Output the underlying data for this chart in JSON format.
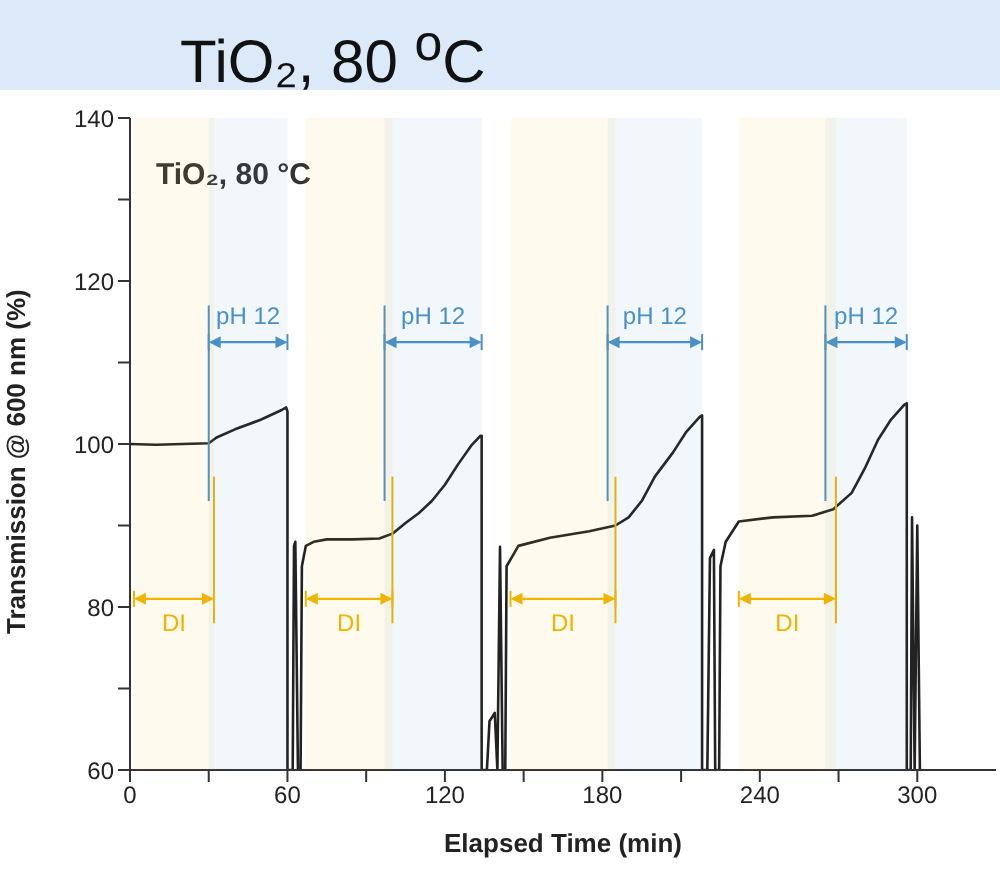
{
  "chart_data": {
    "type": "line",
    "title": "TiO₂, 80 $^{o}$C",
    "subtitle": "TiO₂, 80 °C",
    "xlabel": "Elapsed Time (min)",
    "ylabel": "Transmission @ 600 nm  (%)",
    "series": [
      {
        "color": "#222222",
        "x": [
          0,
          10,
          20,
          30,
          33,
          40,
          50,
          58,
          59.5,
          60,
          60,
          62,
          62.5,
          63,
          64,
          65,
          65.5,
          67,
          70,
          75,
          85,
          95,
          100,
          105,
          110,
          115,
          120,
          125,
          130,
          133.5,
          134,
          134,
          136,
          137,
          139,
          140,
          141,
          142,
          143,
          143.5,
          148,
          160,
          175,
          185,
          190,
          195,
          200,
          207,
          212,
          217,
          218,
          218,
          220,
          221,
          222.5,
          223,
          224.5,
          225,
          227,
          232,
          245,
          260,
          268,
          275,
          280,
          285,
          290,
          295,
          296,
          296,
          297.5,
          298,
          299,
          300,
          301
        ],
        "values": [
          100,
          99.9,
          100,
          100.1,
          100.8,
          101.8,
          103,
          104.2,
          104.5,
          104,
          60,
          60,
          87.5,
          88,
          60,
          60,
          85,
          87.5,
          88,
          88.3,
          88.3,
          88.4,
          89,
          90.3,
          91.5,
          93,
          95,
          97.5,
          99.8,
          101,
          101,
          60,
          60,
          66,
          67,
          60,
          87.4,
          60,
          60,
          85,
          87.5,
          88.5,
          89.3,
          90,
          91,
          93,
          96,
          99,
          101.5,
          103.3,
          103.5,
          60,
          60,
          86,
          87,
          60,
          60,
          85,
          88,
          90.5,
          91,
          91.2,
          92,
          94,
          97,
          100.5,
          103,
          104.8,
          105,
          60,
          60,
          91,
          60,
          90,
          60
        ]
      }
    ],
    "xlim": [
      0,
      330
    ],
    "xticks": [
      0,
      {
        "value": 30,
        "label": null
      },
      60,
      {
        "value": 90,
        "label": null
      },
      120,
      {
        "value": 150,
        "label": null
      },
      180,
      {
        "value": 210,
        "label": null
      },
      240,
      {
        "value": 270,
        "label": null
      },
      300
    ],
    "ylim": [
      60,
      140
    ],
    "yticks": [
      60,
      {
        "value": 70,
        "label": null
      },
      80,
      {
        "value": 90,
        "label": null
      },
      100,
      {
        "value": 110,
        "label": null
      },
      120,
      {
        "value": 130,
        "label": null
      },
      140
    ],
    "marker": "none",
    "line_style": "solid",
    "ref_lines": [
      {
        "axis": "x",
        "value": 30,
        "color": "#4a90c8"
      },
      {
        "axis": "x",
        "value": 97,
        "color": "#4a90c8"
      },
      {
        "axis": "x",
        "value": 182,
        "color": "#4a90c8"
      },
      {
        "axis": "x",
        "value": 265,
        "color": "#4a90c8"
      },
      {
        "axis": "x",
        "value": 32,
        "color": "#f0b400"
      },
      {
        "axis": "x",
        "value": 100,
        "color": "#f0b400"
      },
      {
        "axis": "x",
        "value": 185,
        "color": "#f0b400"
      },
      {
        "axis": "x",
        "value": 269,
        "color": "#f0b400"
      }
    ],
    "bands": [
      {
        "axis": "x",
        "from": 30,
        "to": 60,
        "label": "pH 12",
        "color": "#4a90c8"
      },
      {
        "axis": "x",
        "from": 97,
        "to": 134,
        "label": "pH 12",
        "color": "#4a90c8"
      },
      {
        "axis": "x",
        "from": 182,
        "to": 218,
        "label": "pH 12",
        "color": "#4a90c8"
      },
      {
        "axis": "x",
        "from": 265,
        "to": 296,
        "label": "pH 12",
        "color": "#4a90c8"
      },
      {
        "axis": "x",
        "from": 1.5,
        "to": 32,
        "label": "DI",
        "color": "#f0b400"
      },
      {
        "axis": "x",
        "from": 67,
        "to": 100,
        "label": "DI",
        "color": "#f0b400"
      },
      {
        "axis": "x",
        "from": 145,
        "to": 185,
        "label": "DI",
        "color": "#f0b400"
      },
      {
        "axis": "x",
        "from": 232,
        "to": 269,
        "label": "DI",
        "color": "#f0b400"
      }
    ]
  }
}
